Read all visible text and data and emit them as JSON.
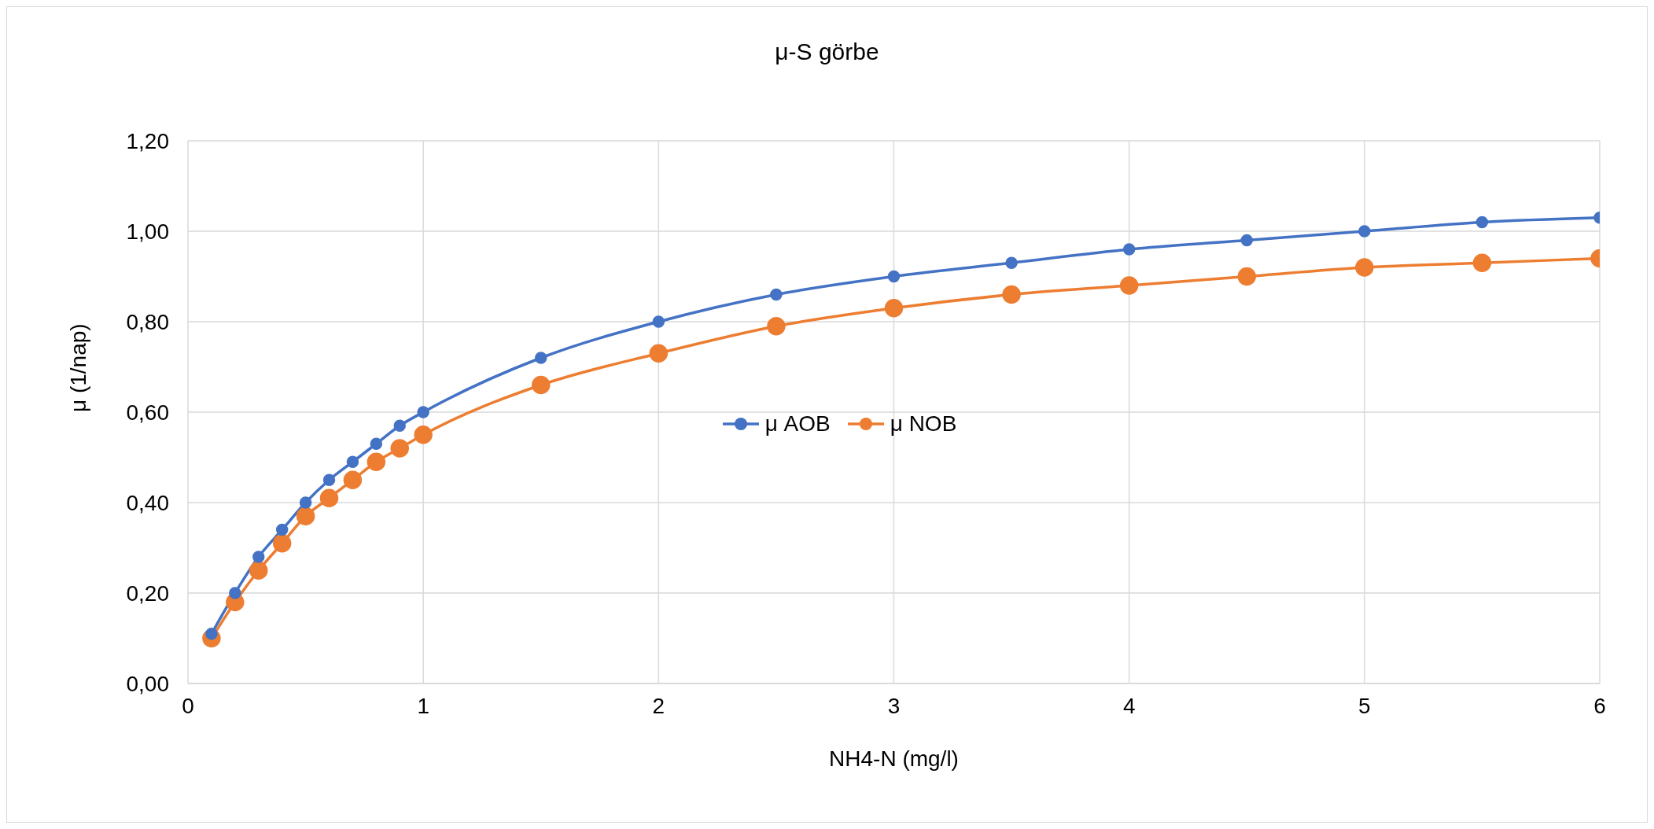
{
  "chart_data": {
    "type": "line",
    "title": "μ-S görbe",
    "xlabel": "NH4-N (mg/l)",
    "ylabel": "μ (1/nap)",
    "x": [
      0.1,
      0.2,
      0.3,
      0.4,
      0.5,
      0.6,
      0.7,
      0.8,
      0.9,
      1,
      1.5,
      2,
      2.5,
      3,
      3.5,
      4,
      4.5,
      5,
      5.5,
      6
    ],
    "series": [
      {
        "name": "μ AOB",
        "color": "#4472c4",
        "values": [
          0.11,
          0.2,
          0.28,
          0.34,
          0.4,
          0.45,
          0.49,
          0.53,
          0.57,
          0.6,
          0.72,
          0.8,
          0.86,
          0.9,
          0.93,
          0.96,
          0.98,
          1.0,
          1.02,
          1.03
        ]
      },
      {
        "name": "μ NOB",
        "color": "#ed7d31",
        "values": [
          0.1,
          0.18,
          0.25,
          0.31,
          0.37,
          0.41,
          0.45,
          0.49,
          0.52,
          0.55,
          0.66,
          0.73,
          0.79,
          0.83,
          0.86,
          0.88,
          0.9,
          0.92,
          0.93,
          0.94
        ]
      }
    ],
    "xlim": [
      0,
      6
    ],
    "xticks": [
      0,
      1,
      2,
      3,
      4,
      5,
      6
    ],
    "ylim": [
      0,
      1.2
    ],
    "yticks": [
      {
        "value": 0,
        "label": "0,00"
      },
      {
        "value": 0.2,
        "label": "0,20"
      },
      {
        "value": 0.4,
        "label": "0,40"
      },
      {
        "value": 0.6,
        "label": "0,60"
      },
      {
        "value": 0.8,
        "label": "0,80"
      },
      {
        "value": 1,
        "label": "1,00"
      },
      {
        "value": 1.2,
        "label": "1,20"
      }
    ],
    "grid": true,
    "legend": "center",
    "marker": "circle",
    "line_style": "solid"
  }
}
